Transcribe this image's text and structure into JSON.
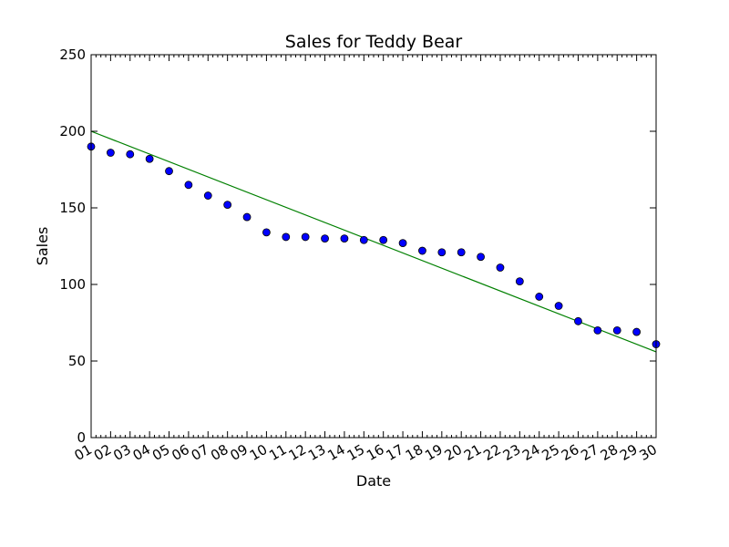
{
  "chart_data": {
    "type": "scatter",
    "title": "Sales for Teddy Bear",
    "xlabel": "Date",
    "ylabel": "Sales",
    "ylim": [
      0,
      250
    ],
    "yticks": [
      0,
      50,
      100,
      150,
      200,
      250
    ],
    "x": [
      "01",
      "02",
      "03",
      "04",
      "05",
      "06",
      "07",
      "08",
      "09",
      "10",
      "11",
      "12",
      "13",
      "14",
      "15",
      "16",
      "17",
      "18",
      "19",
      "20",
      "21",
      "22",
      "23",
      "24",
      "25",
      "26",
      "27",
      "28",
      "29",
      "30"
    ],
    "series": [
      {
        "values": [
          190,
          186,
          185,
          182,
          174,
          165,
          158,
          152,
          144,
          134,
          131,
          131,
          130,
          130,
          129,
          129,
          127,
          122,
          121,
          121,
          118,
          111,
          102,
          92,
          86,
          76,
          70,
          70,
          69,
          61
        ],
        "marker": "circle",
        "color": "#0000ff"
      }
    ],
    "trendline": {
      "start": 200,
      "end": 56,
      "color": "#008000"
    },
    "grid": false
  }
}
